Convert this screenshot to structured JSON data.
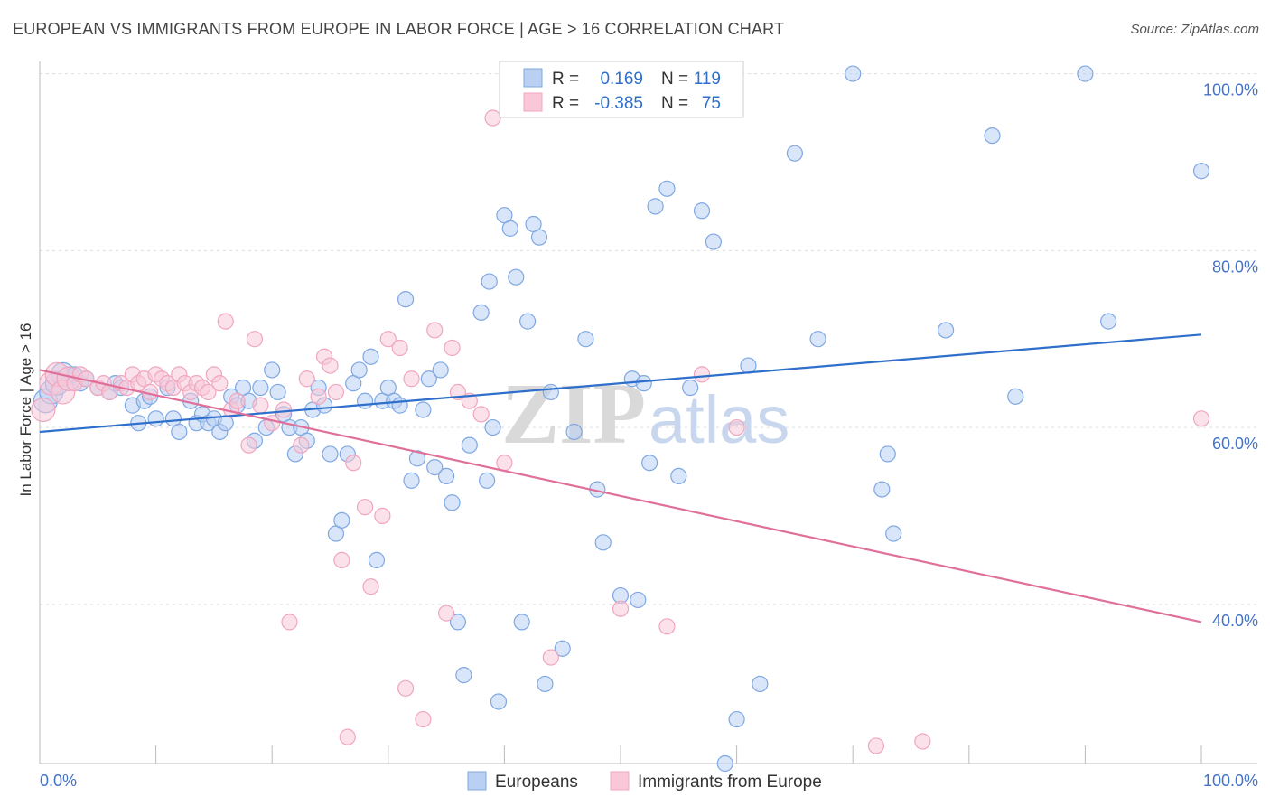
{
  "title": "EUROPEAN VS IMMIGRANTS FROM EUROPE IN LABOR FORCE | AGE > 16 CORRELATION CHART",
  "source": "Source: ZipAtlas.com",
  "watermark": {
    "zip": "ZIP",
    "atlas": "atlas"
  },
  "chart_data": {
    "type": "scatter",
    "title": "EUROPEAN VS IMMIGRANTS FROM EUROPE IN LABOR FORCE | AGE > 16 CORRELATION CHART",
    "xlabel": "",
    "ylabel": "In Labor Force | Age > 16",
    "xlim": [
      0,
      100
    ],
    "ylim": [
      22,
      102
    ],
    "x_tick_labels": [
      "0.0%",
      "100.0%"
    ],
    "y_ticks": [
      40,
      60,
      80,
      100
    ],
    "y_tick_labels": [
      "40.0%",
      "60.0%",
      "80.0%",
      "100.0%"
    ],
    "grid": true,
    "legend_position": "top-center",
    "legend": {
      "r_label": "R =",
      "n_label": "N =",
      "entries": [
        {
          "r": "0.169",
          "n": "119"
        },
        {
          "r": "-0.385",
          "n": "75"
        }
      ]
    },
    "series": [
      {
        "name": "Europeans",
        "color": "#7fa8e3",
        "fill": "#b9d0f2",
        "line_color": "#2e6fcc",
        "trend": {
          "x": [
            0,
            100
          ],
          "y": [
            59.5,
            70.5
          ]
        },
        "points": [
          [
            0.5,
            63
          ],
          [
            1,
            64
          ],
          [
            1.5,
            65
          ],
          [
            2,
            66
          ],
          [
            2.5,
            65.5
          ],
          [
            3,
            66
          ],
          [
            3.5,
            65
          ],
          [
            4,
            65.5
          ],
          [
            5,
            64.5
          ],
          [
            6,
            64
          ],
          [
            6.5,
            65
          ],
          [
            7,
            64.5
          ],
          [
            8,
            62.5
          ],
          [
            8.5,
            60.5
          ],
          [
            9,
            63
          ],
          [
            9.5,
            63.5
          ],
          [
            10,
            61
          ],
          [
            11,
            64.5
          ],
          [
            11.5,
            61
          ],
          [
            12,
            59.5
          ],
          [
            13,
            63
          ],
          [
            13.5,
            60.5
          ],
          [
            14,
            61.5
          ],
          [
            14.5,
            60.5
          ],
          [
            15,
            61
          ],
          [
            15.5,
            59.5
          ],
          [
            16,
            60.5
          ],
          [
            16.5,
            63.5
          ],
          [
            17,
            62.5
          ],
          [
            17.5,
            64.5
          ],
          [
            18,
            63
          ],
          [
            18.5,
            58.5
          ],
          [
            19,
            64.5
          ],
          [
            19.5,
            60
          ],
          [
            20,
            66.5
          ],
          [
            20.5,
            64
          ],
          [
            21,
            61.5
          ],
          [
            21.5,
            60
          ],
          [
            22,
            57
          ],
          [
            22.5,
            60
          ],
          [
            23,
            58.5
          ],
          [
            23.5,
            62
          ],
          [
            24,
            64.5
          ],
          [
            24.5,
            62.5
          ],
          [
            25,
            57
          ],
          [
            25.5,
            48
          ],
          [
            26,
            49.5
          ],
          [
            26.5,
            57
          ],
          [
            27,
            65
          ],
          [
            27.5,
            66.5
          ],
          [
            28,
            63
          ],
          [
            28.5,
            68
          ],
          [
            29,
            45
          ],
          [
            29.5,
            63
          ],
          [
            30,
            64.5
          ],
          [
            30.5,
            63
          ],
          [
            31,
            62.5
          ],
          [
            31.5,
            74.5
          ],
          [
            32,
            54
          ],
          [
            32.5,
            56.5
          ],
          [
            33,
            62
          ],
          [
            33.5,
            65.5
          ],
          [
            34,
            55.5
          ],
          [
            34.5,
            66.5
          ],
          [
            35,
            54.5
          ],
          [
            35.5,
            51.5
          ],
          [
            36,
            38
          ],
          [
            36.5,
            32
          ],
          [
            37,
            58
          ],
          [
            38,
            73
          ],
          [
            38.5,
            54
          ],
          [
            38.7,
            76.5
          ],
          [
            39,
            60
          ],
          [
            39.5,
            29
          ],
          [
            40,
            84
          ],
          [
            40.5,
            82.5
          ],
          [
            41,
            77
          ],
          [
            41.5,
            38
          ],
          [
            42,
            72
          ],
          [
            42.5,
            83
          ],
          [
            43,
            81.5
          ],
          [
            43.5,
            31
          ],
          [
            44,
            64
          ],
          [
            45,
            35
          ],
          [
            46,
            59.5
          ],
          [
            47,
            70
          ],
          [
            48,
            53
          ],
          [
            48.5,
            47
          ],
          [
            50,
            41
          ],
          [
            51,
            65.5
          ],
          [
            51.5,
            40.5
          ],
          [
            52,
            65
          ],
          [
            52.5,
            56
          ],
          [
            53,
            85
          ],
          [
            54,
            87
          ],
          [
            55,
            54.5
          ],
          [
            56,
            64.5
          ],
          [
            57,
            84.5
          ],
          [
            58,
            81
          ],
          [
            59,
            22
          ],
          [
            60,
            27
          ],
          [
            61,
            67
          ],
          [
            62,
            31
          ],
          [
            65,
            91
          ],
          [
            67,
            70
          ],
          [
            70,
            100
          ],
          [
            72.5,
            53
          ],
          [
            73,
            57
          ],
          [
            73.5,
            48
          ],
          [
            78,
            71
          ],
          [
            82,
            93
          ],
          [
            84,
            63.5
          ],
          [
            90,
            100
          ],
          [
            92,
            72
          ],
          [
            100,
            89
          ]
        ]
      },
      {
        "name": "Immigrants from Europe",
        "color": "#f0a6bf",
        "fill": "#f8c8d8",
        "line_color": "#e0709a",
        "trend": {
          "x": [
            0,
            100
          ],
          "y": [
            66.5,
            38
          ]
        },
        "points": [
          [
            0.3,
            62
          ],
          [
            1,
            65
          ],
          [
            1.5,
            66
          ],
          [
            2,
            64
          ],
          [
            2.5,
            65.5
          ],
          [
            3,
            65
          ],
          [
            3.5,
            66
          ],
          [
            4,
            65.5
          ],
          [
            5,
            64.5
          ],
          [
            5.5,
            65
          ],
          [
            6,
            64
          ],
          [
            7,
            65
          ],
          [
            7.5,
            64.5
          ],
          [
            8,
            66
          ],
          [
            8.5,
            65
          ],
          [
            9,
            65.5
          ],
          [
            9.5,
            64
          ],
          [
            10,
            66
          ],
          [
            10.5,
            65.5
          ],
          [
            11,
            65
          ],
          [
            11.5,
            64.5
          ],
          [
            12,
            66
          ],
          [
            12.5,
            65
          ],
          [
            13,
            64
          ],
          [
            13.5,
            65
          ],
          [
            14,
            64.5
          ],
          [
            14.5,
            64
          ],
          [
            15,
            66
          ],
          [
            15.5,
            65
          ],
          [
            16,
            72
          ],
          [
            16.5,
            62
          ],
          [
            17,
            63
          ],
          [
            18,
            58
          ],
          [
            18.5,
            70
          ],
          [
            19,
            62.5
          ],
          [
            20,
            60.5
          ],
          [
            21,
            62
          ],
          [
            21.5,
            38
          ],
          [
            22.5,
            58
          ],
          [
            23,
            65.5
          ],
          [
            24,
            63.5
          ],
          [
            24.5,
            68
          ],
          [
            25,
            67
          ],
          [
            25.5,
            64
          ],
          [
            26,
            45
          ],
          [
            26.5,
            25
          ],
          [
            27,
            56
          ],
          [
            28,
            51
          ],
          [
            28.5,
            42
          ],
          [
            29.5,
            50
          ],
          [
            30,
            70
          ],
          [
            31,
            69
          ],
          [
            31.5,
            30.5
          ],
          [
            32,
            65.5
          ],
          [
            33,
            27
          ],
          [
            34,
            71
          ],
          [
            35,
            39
          ],
          [
            35.5,
            69
          ],
          [
            36,
            64
          ],
          [
            37,
            63
          ],
          [
            38,
            61.5
          ],
          [
            39,
            95
          ],
          [
            40,
            56
          ],
          [
            41,
            100
          ],
          [
            44,
            34
          ],
          [
            50,
            39.5
          ],
          [
            54,
            37.5
          ],
          [
            57,
            66
          ],
          [
            60,
            60
          ],
          [
            72,
            24
          ],
          [
            76,
            24.5
          ],
          [
            100,
            61
          ]
        ]
      }
    ]
  },
  "legend_bottom": {
    "items": [
      {
        "label": "Europeans"
      },
      {
        "label": "Immigrants from Europe"
      }
    ]
  }
}
